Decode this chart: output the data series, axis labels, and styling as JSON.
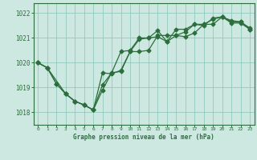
{
  "title": "Graphe pression niveau de la mer (hPa)",
  "background_color": "#cce8e0",
  "grid_color": "#88c4b8",
  "line_color": "#2d6e3e",
  "xlim": [
    -0.5,
    23.5
  ],
  "ylim": [
    1017.5,
    1022.4
  ],
  "yticks": [
    1018,
    1019,
    1020,
    1021,
    1022
  ],
  "xticks": [
    0,
    1,
    2,
    3,
    4,
    5,
    6,
    7,
    8,
    9,
    10,
    11,
    12,
    13,
    14,
    15,
    16,
    17,
    18,
    19,
    20,
    21,
    22,
    23
  ],
  "series1_x": [
    0,
    1,
    2,
    3,
    4,
    5,
    6,
    7,
    8,
    9,
    10,
    11,
    12,
    13,
    14,
    15,
    16,
    17,
    18,
    19,
    20,
    21,
    22,
    23
  ],
  "series1_y": [
    1020.0,
    1019.8,
    1019.15,
    1018.75,
    1018.45,
    1018.3,
    1018.1,
    1019.1,
    1019.6,
    1020.45,
    1020.5,
    1021.0,
    1021.0,
    1021.3,
    1020.85,
    1021.1,
    1021.05,
    1021.2,
    1021.55,
    1021.75,
    1021.85,
    1021.65,
    1021.65,
    1021.4
  ],
  "series2_x": [
    0,
    1,
    2,
    3,
    4,
    5,
    6,
    7,
    8,
    9,
    10,
    11,
    12,
    13,
    14,
    15,
    16,
    17,
    18,
    19,
    20,
    21,
    22,
    23
  ],
  "series2_y": [
    1020.0,
    1019.8,
    1019.15,
    1018.75,
    1018.45,
    1018.3,
    1018.1,
    1018.9,
    1019.6,
    1019.65,
    1020.45,
    1020.95,
    1021.0,
    1021.05,
    1020.85,
    1021.35,
    1021.35,
    1021.55,
    1021.5,
    1021.8,
    1021.85,
    1021.7,
    1021.65,
    1021.35
  ],
  "series3_x": [
    0,
    1,
    3,
    4,
    5,
    6,
    7,
    8,
    9,
    10,
    11,
    12,
    13,
    14,
    15,
    16,
    17,
    18,
    19,
    20,
    21,
    22,
    23
  ],
  "series3_y": [
    1020.0,
    1019.8,
    1018.75,
    1018.45,
    1018.3,
    1018.1,
    1019.6,
    1019.55,
    1019.7,
    1020.45,
    1020.45,
    1020.5,
    1021.1,
    1021.1,
    1021.1,
    1021.25,
    1021.55,
    1021.55,
    1021.55,
    1021.85,
    1021.6,
    1021.6,
    1021.35
  ]
}
